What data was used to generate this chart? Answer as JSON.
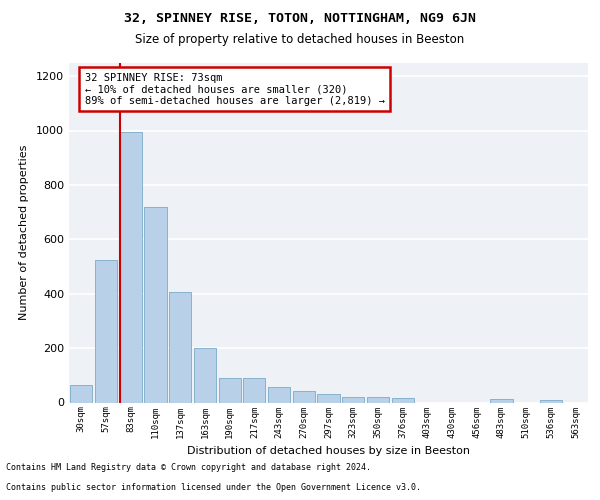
{
  "title": "32, SPINNEY RISE, TOTON, NOTTINGHAM, NG9 6JN",
  "subtitle": "Size of property relative to detached houses in Beeston",
  "xlabel": "Distribution of detached houses by size in Beeston",
  "ylabel": "Number of detached properties",
  "categories": [
    "30sqm",
    "57sqm",
    "83sqm",
    "110sqm",
    "137sqm",
    "163sqm",
    "190sqm",
    "217sqm",
    "243sqm",
    "270sqm",
    "297sqm",
    "323sqm",
    "350sqm",
    "376sqm",
    "403sqm",
    "430sqm",
    "456sqm",
    "483sqm",
    "510sqm",
    "536sqm",
    "563sqm"
  ],
  "values": [
    65,
    525,
    995,
    720,
    405,
    200,
    90,
    90,
    57,
    42,
    30,
    20,
    20,
    18,
    0,
    0,
    0,
    12,
    0,
    10,
    0
  ],
  "bar_color": "#b8d0e8",
  "bar_edge_color": "#7aaac8",
  "vline_color": "#cc0000",
  "vline_x_index": 2,
  "annotation_text": "32 SPINNEY RISE: 73sqm\n← 10% of detached houses are smaller (320)\n89% of semi-detached houses are larger (2,819) →",
  "annotation_box_color": "#ffffff",
  "annotation_box_edge_color": "#cc0000",
  "ylim": [
    0,
    1250
  ],
  "yticks": [
    0,
    200,
    400,
    600,
    800,
    1000,
    1200
  ],
  "background_color": "#eef2f7",
  "grid_color": "#ffffff",
  "footer_line1": "Contains HM Land Registry data © Crown copyright and database right 2024.",
  "footer_line2": "Contains public sector information licensed under the Open Government Licence v3.0."
}
